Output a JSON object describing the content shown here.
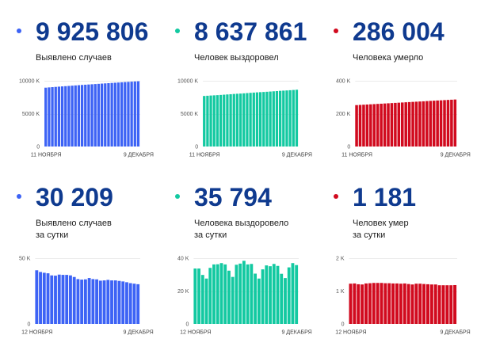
{
  "colors": {
    "cases": "#3d63f5",
    "recovered": "#13c9a1",
    "deaths": "#d10a1e",
    "value": "#0f3a8f"
  },
  "cards": [
    {
      "value": "9 925 806",
      "label": [
        "Выявлено случаев"
      ],
      "color": "#3d63f5"
    },
    {
      "value": "8 637 861",
      "label": [
        "Человек выздоровел"
      ],
      "color": "#13c9a1"
    },
    {
      "value": "286 004",
      "label": [
        "Человека умерло"
      ],
      "color": "#d10a1e"
    },
    {
      "value": "30 209",
      "label": [
        "Выявлено случаев",
        "за сутки"
      ],
      "color": "#3d63f5"
    },
    {
      "value": "35 794",
      "label": [
        "Человека выздоровело",
        "за сутки"
      ],
      "color": "#13c9a1"
    },
    {
      "value": "1 181",
      "label": [
        "Человек умер",
        "за сутки"
      ],
      "color": "#d10a1e"
    }
  ],
  "chart_data": [
    {
      "type": "bar",
      "title": "",
      "series_name": "Выявлено случаев",
      "xlabel": "",
      "ylabel": "",
      "unit": "K",
      "color": "#3d63f5",
      "grid": true,
      "ylim": [
        0,
        10000
      ],
      "yticks": [
        0,
        5000,
        10000
      ],
      "ytick_labels": [
        "0",
        "5000 K",
        "10000 K"
      ],
      "xticks": [
        {
          "category": "11 ноября",
          "label": "11 НОЯБРЯ"
        },
        {
          "category": "9 декабря",
          "label": "9 ДЕКАБРЯ"
        }
      ],
      "categories": [
        "11 ноября",
        "12 ноября",
        "13 ноября",
        "14 ноября",
        "15 ноября",
        "16 ноября",
        "17 ноября",
        "18 ноября",
        "19 ноября",
        "20 ноября",
        "21 ноября",
        "22 ноября",
        "23 ноября",
        "24 ноября",
        "25 ноября",
        "26 ноября",
        "27 ноября",
        "28 ноября",
        "29 ноября",
        "30 ноября",
        "1 декабря",
        "2 декабря",
        "3 декабря",
        "4 декабря",
        "5 декабря",
        "6 декабря",
        "7 декабря",
        "8 декабря",
        "9 декабря"
      ],
      "values": [
        8951.0,
        8991.8,
        9031.3,
        9070.2,
        9108.7,
        9145.6,
        9182.3,
        9219.8,
        9257.1,
        9294.4,
        9331.3,
        9367.0,
        9401.1,
        9434.8,
        9468.7,
        9503.6,
        9537.7,
        9571.6,
        9604.5,
        9637.6,
        9671.1,
        9704.2,
        9737.3,
        9770.0,
        9802.3,
        9834.0,
        9865.0,
        9895.6,
        9925.8
      ]
    },
    {
      "type": "bar",
      "title": "",
      "series_name": "Человек выздоровел",
      "xlabel": "",
      "ylabel": "",
      "unit": "K",
      "color": "#13c9a1",
      "grid": true,
      "ylim": [
        0,
        10000
      ],
      "yticks": [
        0,
        5000,
        10000
      ],
      "ytick_labels": [
        "0",
        "5000 K",
        "10000 K"
      ],
      "xticks": [
        {
          "category": "11 ноября",
          "label": "11 НОЯБРЯ"
        },
        {
          "category": "9 декабря",
          "label": "9 ДЕКАБРЯ"
        }
      ],
      "categories": [
        "11 ноября",
        "12 ноября",
        "13 ноября",
        "14 ноября",
        "15 ноября",
        "16 ноября",
        "17 ноября",
        "18 ноября",
        "19 ноября",
        "20 ноября",
        "21 ноября",
        "22 ноября",
        "23 ноября",
        "24 ноября",
        "25 ноября",
        "26 ноября",
        "27 ноября",
        "28 ноября",
        "29 ноября",
        "30 ноября",
        "1 декабря",
        "2 декабря",
        "3 декабря",
        "4 декабря",
        "5 декабря",
        "6 декабря",
        "7 декабря",
        "8 декабря",
        "9 декабря"
      ],
      "values": [
        7689.0,
        7722.7,
        7756.4,
        7786.2,
        7813.8,
        7847.9,
        7884.1,
        7920.4,
        7957.4,
        7993.6,
        8026.0,
        8054.6,
        8090.6,
        8127.3,
        8165.7,
        8201.9,
        8238.4,
        8269.0,
        8296.6,
        8329.8,
        8365.4,
        8400.5,
        8437.0,
        8472.3,
        8502.8,
        8530.7,
        8565.1,
        8602.1,
        8637.9
      ]
    },
    {
      "type": "bar",
      "title": "",
      "series_name": "Человека умерло",
      "xlabel": "",
      "ylabel": "",
      "unit": "K",
      "color": "#d10a1e",
      "grid": true,
      "ylim": [
        0,
        400
      ],
      "yticks": [
        0,
        200,
        400
      ],
      "ytick_labels": [
        "0",
        "200 K",
        "400 K"
      ],
      "xticks": [
        {
          "category": "11 ноября",
          "label": "11 НОЯБРЯ"
        },
        {
          "category": "9 декабря",
          "label": "9 ДЕКАБРЯ"
        }
      ],
      "categories": [
        "11 ноября",
        "12 ноября",
        "13 ноября",
        "14 ноября",
        "15 ноября",
        "16 ноября",
        "17 ноября",
        "18 ноября",
        "19 ноября",
        "20 ноября",
        "21 ноября",
        "22 ноября",
        "23 ноября",
        "24 ноября",
        "25 ноября",
        "26 ноября",
        "27 ноября",
        "28 ноября",
        "29 ноября",
        "30 ноября",
        "1 декабря",
        "2 декабря",
        "3 декабря",
        "4 декабря",
        "5 декабря",
        "6 декабря",
        "7 декабря",
        "8 декабря",
        "9 декабря"
      ],
      "values": [
        252.0,
        253.2,
        254.4,
        255.6,
        256.8,
        258.0,
        259.3,
        260.5,
        261.8,
        263.0,
        264.3,
        265.5,
        266.7,
        267.9,
        269.2,
        270.4,
        271.6,
        272.8,
        274.0,
        275.2,
        276.5,
        277.7,
        278.9,
        280.1,
        281.2,
        282.4,
        283.6,
        284.8,
        286.0
      ]
    },
    {
      "type": "bar",
      "title": "",
      "series_name": "Выявлено случаев за сутки",
      "xlabel": "",
      "ylabel": "",
      "unit": "K",
      "color": "#3d63f5",
      "grid": true,
      "ylim": [
        0,
        50
      ],
      "yticks": [
        0,
        50
      ],
      "ytick_labels": [
        "0",
        "50 K"
      ],
      "xticks": [
        {
          "category": "12 ноября",
          "label": "12 НОЯБРЯ"
        },
        {
          "category": "9 декабря",
          "label": "9 ДЕКАБРЯ"
        }
      ],
      "categories": [
        "12 ноября",
        "13 ноября",
        "14 ноября",
        "15 ноября",
        "16 ноября",
        "17 ноября",
        "18 ноября",
        "19 ноября",
        "20 ноября",
        "21 ноября",
        "22 ноября",
        "23 ноября",
        "24 ноября",
        "25 ноября",
        "26 ноября",
        "27 ноября",
        "28 ноября",
        "29 ноября",
        "30 ноября",
        "1 декабря",
        "2 декабря",
        "3 декабря",
        "4 декабря",
        "5 декабря",
        "6 декабря",
        "7 декабря",
        "8 декабря",
        "9 декабря"
      ],
      "values": [
        40.8,
        39.5,
        38.9,
        38.5,
        36.9,
        36.7,
        37.5,
        37.3,
        37.3,
        36.9,
        35.7,
        34.1,
        33.7,
        33.9,
        34.9,
        34.1,
        33.9,
        32.9,
        33.1,
        33.5,
        33.1,
        33.1,
        32.7,
        32.3,
        31.7,
        31.0,
        30.6,
        30.2
      ]
    },
    {
      "type": "bar",
      "title": "",
      "series_name": "Человека выздоровело за сутки",
      "xlabel": "",
      "ylabel": "",
      "unit": "K",
      "color": "#13c9a1",
      "grid": true,
      "ylim": [
        0,
        40
      ],
      "yticks": [
        0,
        20,
        40
      ],
      "ytick_labels": [
        "0",
        "20 K",
        "40 K"
      ],
      "xticks": [
        {
          "category": "12 ноября",
          "label": "12 НОЯБРЯ"
        },
        {
          "category": "9 декабря",
          "label": "9 ДЕКАБРЯ"
        }
      ],
      "categories": [
        "12 ноября",
        "13 ноября",
        "14 ноября",
        "15 ноября",
        "16 ноября",
        "17 ноября",
        "18 ноября",
        "19 ноября",
        "20 ноября",
        "21 ноября",
        "22 ноября",
        "23 ноября",
        "24 ноября",
        "25 ноября",
        "26 ноября",
        "27 ноября",
        "28 ноября",
        "29 ноября",
        "30 ноября",
        "1 декабря",
        "2 декабря",
        "3 декабря",
        "4 декабря",
        "5 декабря",
        "6 декабря",
        "7 декабря",
        "8 декабря",
        "9 декабря"
      ],
      "values": [
        33.7,
        33.7,
        29.8,
        27.6,
        34.1,
        36.2,
        36.3,
        37.0,
        36.2,
        32.4,
        28.6,
        36.0,
        36.7,
        38.4,
        36.2,
        36.5,
        30.6,
        27.6,
        33.2,
        35.6,
        35.1,
        36.5,
        35.3,
        30.5,
        27.9,
        34.4,
        37.0,
        35.8
      ]
    },
    {
      "type": "bar",
      "title": "",
      "series_name": "Человек умер за сутки",
      "xlabel": "",
      "ylabel": "",
      "unit": "K",
      "color": "#d10a1e",
      "grid": true,
      "ylim": [
        0,
        2
      ],
      "yticks": [
        0,
        1,
        2
      ],
      "ytick_labels": [
        "0",
        "1 K",
        "2 K"
      ],
      "xticks": [
        {
          "category": "12 ноября",
          "label": "12 НОЯБРЯ"
        },
        {
          "category": "9 декабря",
          "label": "9 ДЕКАБРЯ"
        }
      ],
      "categories": [
        "12 ноября",
        "13 ноября",
        "14 ноября",
        "15 ноября",
        "16 ноября",
        "17 ноября",
        "18 ноября",
        "19 ноября",
        "20 ноября",
        "21 ноября",
        "22 ноября",
        "23 ноября",
        "24 ноября",
        "25 ноября",
        "26 ноября",
        "27 ноября",
        "28 ноября",
        "29 ноября",
        "30 ноября",
        "1 декабря",
        "2 декабря",
        "3 декабря",
        "4 декабря",
        "5 декабря",
        "6 декабря",
        "7 декабря",
        "8 декабря",
        "9 декабря"
      ],
      "values": [
        1.224,
        1.231,
        1.207,
        1.2,
        1.231,
        1.238,
        1.247,
        1.247,
        1.247,
        1.238,
        1.238,
        1.231,
        1.231,
        1.224,
        1.231,
        1.214,
        1.2,
        1.224,
        1.224,
        1.214,
        1.207,
        1.2,
        1.2,
        1.176,
        1.176,
        1.176,
        1.176,
        1.181
      ]
    }
  ]
}
